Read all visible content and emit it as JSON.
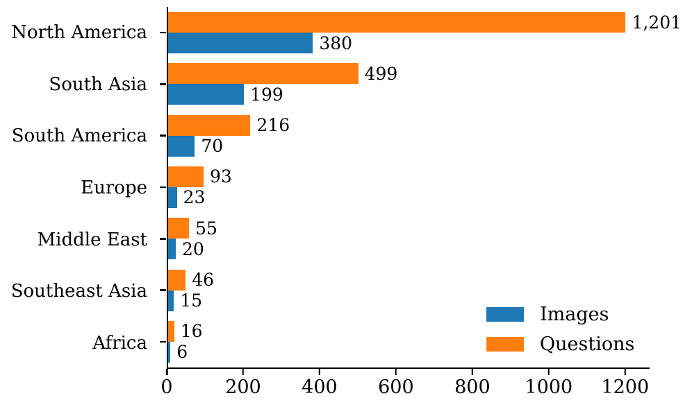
{
  "chart_data": {
    "type": "bar",
    "orientation": "horizontal",
    "title": "",
    "xlabel": "",
    "ylabel": "",
    "grid": false,
    "categories": [
      "North America",
      "South Asia",
      "South America",
      "Europe",
      "Middle East",
      "Southeast Asia",
      "Africa"
    ],
    "series": [
      {
        "name": "Questions",
        "color": "#ff7f0e",
        "values": [
          1201,
          499,
          216,
          93,
          55,
          46,
          16
        ],
        "labels": [
          "1,201",
          "499",
          "216",
          "93",
          "55",
          "46",
          "16"
        ]
      },
      {
        "name": "Images",
        "color": "#1f77b4",
        "values": [
          380,
          199,
          70,
          23,
          20,
          15,
          6
        ],
        "labels": [
          "380",
          "199",
          "70",
          "23",
          "20",
          "15",
          "6"
        ]
      }
    ],
    "bar_order_top_to_bottom": [
      "Questions",
      "Images"
    ],
    "xlim": [
      0,
      1264
    ],
    "x_ticks": [
      0,
      200,
      400,
      600,
      800,
      1000,
      1200
    ],
    "x_tick_labels": [
      "0",
      "200",
      "400",
      "600",
      "800",
      "1000",
      "1200"
    ],
    "legend": {
      "position": "lower right",
      "frame": false,
      "entries": [
        {
          "label": "Images",
          "color": "#1f77b4"
        },
        {
          "label": "Questions",
          "color": "#ff7f0e"
        }
      ]
    }
  },
  "colors": {
    "axis": "#000000",
    "text": "#000000",
    "background": "#ffffff"
  }
}
